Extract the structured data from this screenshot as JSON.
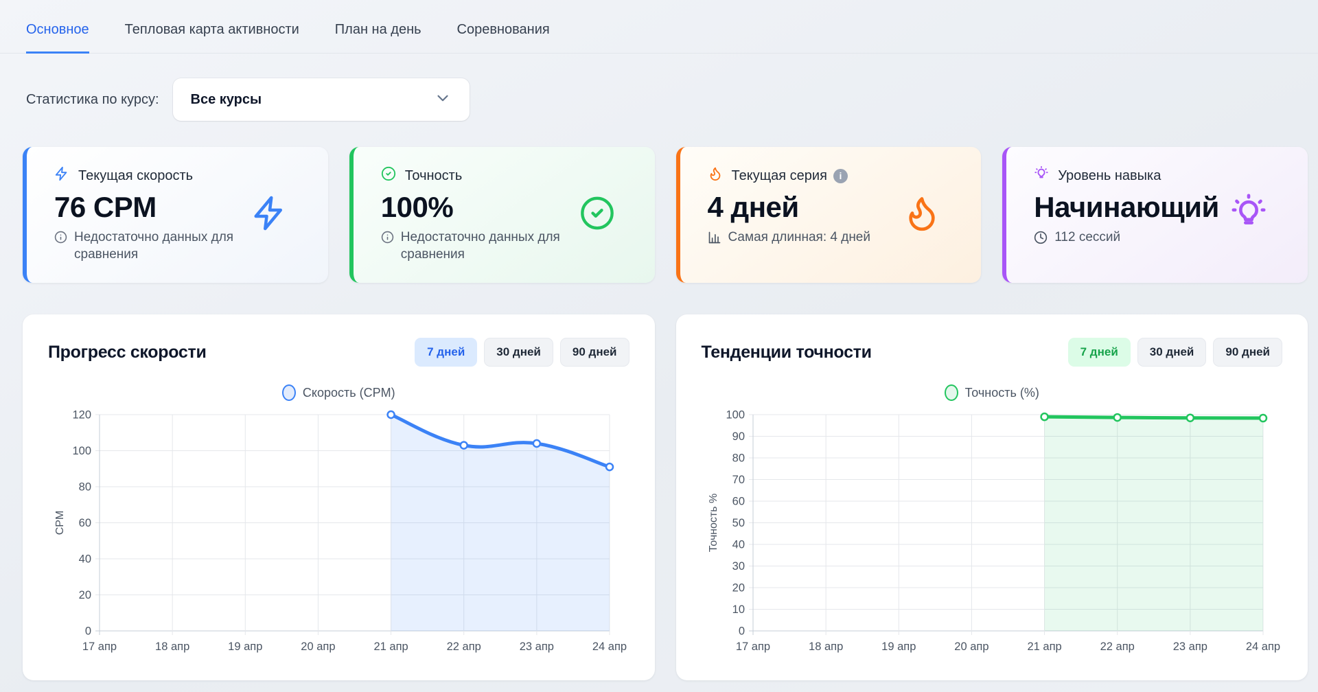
{
  "tabs": [
    {
      "label": "Основное",
      "active": true
    },
    {
      "label": "Тепловая карта активности",
      "active": false
    },
    {
      "label": "План на день",
      "active": false
    },
    {
      "label": "Соревнования",
      "active": false
    }
  ],
  "filter": {
    "label": "Статистика по курсу:",
    "value": "Все курсы"
  },
  "stat_cards": [
    {
      "title": "Текущая скорость",
      "value": "76 CPM",
      "subtitle": "Недостаточно данных для сравнения",
      "icon": "lightning-icon",
      "accent": "#3b82f6"
    },
    {
      "title": "Точность",
      "value": "100%",
      "subtitle": "Недостаточно данных для сравнения",
      "icon": "check-circle-icon",
      "accent": "#22c55e"
    },
    {
      "title": "Текущая серия",
      "value": "4 дней",
      "subtitle": "Самая длинная: 4 дней",
      "icon": "flame-icon",
      "accent": "#f97316"
    },
    {
      "title": "Уровень навыка",
      "value": "Начинающий",
      "subtitle": "112 сессий",
      "icon": "lightbulb-icon",
      "accent": "#a855f7"
    }
  ],
  "chart_data": [
    {
      "type": "line",
      "title": "Прогресс скорости",
      "legend": "Скорость (CPM)",
      "ylabel": "CPM",
      "ylim": [
        0,
        120
      ],
      "ystep": 20,
      "categories": [
        "17 апр",
        "18 апр",
        "19 апр",
        "20 апр",
        "21 апр",
        "22 апр",
        "23 апр",
        "24 апр"
      ],
      "values": [
        null,
        null,
        null,
        null,
        120,
        103,
        104,
        91
      ],
      "color": "#3b82f6",
      "fill": "rgba(59,130,246,0.12)",
      "range_buttons": [
        "7 дней",
        "30 дней",
        "90 дней"
      ],
      "active_button": "7 дней",
      "grid": true,
      "legend_position": "top"
    },
    {
      "type": "line",
      "title": "Тенденции точности",
      "legend": "Точность (%)",
      "ylabel": "Точность %",
      "ylim": [
        0,
        100
      ],
      "ystep": 10,
      "categories": [
        "17 апр",
        "18 апр",
        "19 апр",
        "20 апр",
        "21 апр",
        "22 апр",
        "23 апр",
        "24 апр"
      ],
      "values": [
        null,
        null,
        null,
        null,
        99,
        98.7,
        98.5,
        98.4
      ],
      "color": "#22c55e",
      "fill": "rgba(34,197,94,0.10)",
      "range_buttons": [
        "7 дней",
        "30 дней",
        "90 дней"
      ],
      "active_button": "7 дней",
      "grid": true,
      "legend_position": "top"
    }
  ]
}
